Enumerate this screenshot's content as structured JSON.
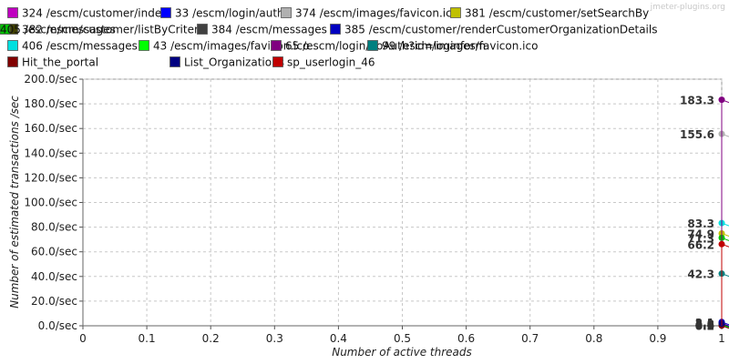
{
  "watermark": "jmeter-plugins.org",
  "chart_data": {
    "type": "line",
    "xlabel": "Number of active threads",
    "ylabel": "Number of estimated transactions /sec",
    "xlim": [
      0,
      1
    ],
    "ylim": [
      0,
      200
    ],
    "x_ticks": [
      0,
      0.1,
      0.2,
      0.3,
      0.4,
      0.5,
      0.6,
      0.7,
      0.8,
      0.9,
      1
    ],
    "x_tick_labels": [
      "0",
      "0.1",
      "0.2",
      "0.3",
      "0.4",
      "0.5",
      "0.6",
      "0.7",
      "0.8",
      "0.9",
      "1"
    ],
    "y_ticks": [
      0,
      20,
      40,
      60,
      80,
      100,
      120,
      140,
      160,
      180,
      200
    ],
    "y_tick_labels": [
      "0.0/sec",
      "20.0/sec",
      "40.0/sec",
      "60.0/sec",
      "80.0/sec",
      "100.0/sec",
      "120.0/sec",
      "140.0/sec",
      "160.0/sec",
      "180.0/sec",
      "200.0/sec"
    ],
    "grid": true,
    "legend_position": "top",
    "series": [
      {
        "name": "324 /escm/customer/index",
        "color": "#c000c0",
        "x": [
          1
        ],
        "y": [
          2.1
        ],
        "label": "2.1"
      },
      {
        "name": "33 /escm/login/auth",
        "color": "#0000ff",
        "x": [
          1
        ],
        "y": [
          0.3
        ],
        "label": "0.3"
      },
      {
        "name": "374 /escm/images/favicon.ico",
        "color": "#b0b0b0",
        "x": [
          1
        ],
        "y": [
          155.6
        ],
        "label": "155.6"
      },
      {
        "name": "381 /escm/customer/setSearchBy",
        "color": "#c0c000",
        "x": [
          1
        ],
        "y": [
          74.9
        ],
        "label": "74.9"
      },
      {
        "name": "382 /escm/customer/listByCriteria",
        "color": "#404000",
        "x": [
          1
        ],
        "y": [
          0.6
        ],
        "label": "0.6"
      },
      {
        "name": "384 /escm/messages",
        "color": "#404040",
        "x": [
          1
        ],
        "y": [
          1.4
        ],
        "label": "1.4"
      },
      {
        "name": "385 /escm/customer/renderCustomerOrganizationDetails",
        "color": "#0000c0",
        "x": [
          1
        ],
        "y": [
          3.1
        ],
        "label": "3.1"
      },
      {
        "name": "405 /escm/messages",
        "color": "#00c000",
        "x": [
          1
        ],
        "y": [
          71.3
        ],
        "label": "71.3"
      },
      {
        "name": "406 /escm/messages",
        "color": "#00e0e0",
        "x": [
          1
        ],
        "y": [
          83.3
        ],
        "label": "83.3"
      },
      {
        "name": "43 /escm/images/favicon.ico",
        "color": "#00ff00",
        "x": [
          1
        ],
        "y": [
          0.9
        ],
        "label": "0.9"
      },
      {
        "name": "65 /escm/login/doAuth?id=loginform",
        "color": "#800080",
        "x": [
          1
        ],
        "y": [
          183.3
        ],
        "label": "183.3"
      },
      {
        "name": "99 /escm/images/favicon.ico",
        "color": "#008080",
        "x": [
          1
        ],
        "y": [
          42.3
        ],
        "label": "42.3"
      },
      {
        "name": "Hit_the_portal",
        "color": "#800000",
        "x": [
          1
        ],
        "y": [
          0.2
        ],
        "label": "0.2"
      },
      {
        "name": "List_Organizations",
        "color": "#000080",
        "x": [
          1
        ],
        "y": [
          1.8
        ],
        "label": "1.8"
      },
      {
        "name": "sp_userlogin_46",
        "color": "#c00000",
        "x": [
          1
        ],
        "y": [
          66.2
        ],
        "label": "66.2"
      }
    ]
  }
}
